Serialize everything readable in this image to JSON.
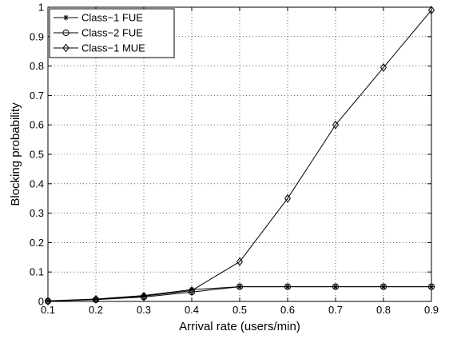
{
  "chart_data": {
    "type": "line",
    "xlabel": "Arrival rate (users/min)",
    "ylabel": "Blocking probability",
    "xlim": [
      0.1,
      0.9
    ],
    "ylim": [
      0,
      1
    ],
    "xticks": [
      "0.1",
      "0.2",
      "0.3",
      "0.4",
      "0.5",
      "0.6",
      "0.7",
      "0.8",
      "0.9"
    ],
    "yticks": [
      "0",
      "0.1",
      "0.2",
      "0.3",
      "0.4",
      "0.5",
      "0.6",
      "0.7",
      "0.8",
      "0.9",
      "1"
    ],
    "grid": true,
    "legend_position": "top-left",
    "x": [
      0.1,
      0.2,
      0.3,
      0.4,
      0.5,
      0.6,
      0.7,
      0.8,
      0.9
    ],
    "series": [
      {
        "name": "Class−1 FUE",
        "marker": "asterisk",
        "values": [
          0.002,
          0.008,
          0.02,
          0.04,
          0.05,
          0.05,
          0.05,
          0.05,
          0.05
        ]
      },
      {
        "name": "Class−2 FUE",
        "marker": "circle",
        "values": [
          0.001,
          0.006,
          0.015,
          0.032,
          0.05,
          0.05,
          0.05,
          0.05,
          0.05
        ]
      },
      {
        "name": "Class−1 MUE",
        "marker": "diamond",
        "values": [
          0.001,
          0.007,
          0.018,
          0.037,
          0.135,
          0.35,
          0.6,
          0.795,
          0.99
        ]
      }
    ]
  }
}
